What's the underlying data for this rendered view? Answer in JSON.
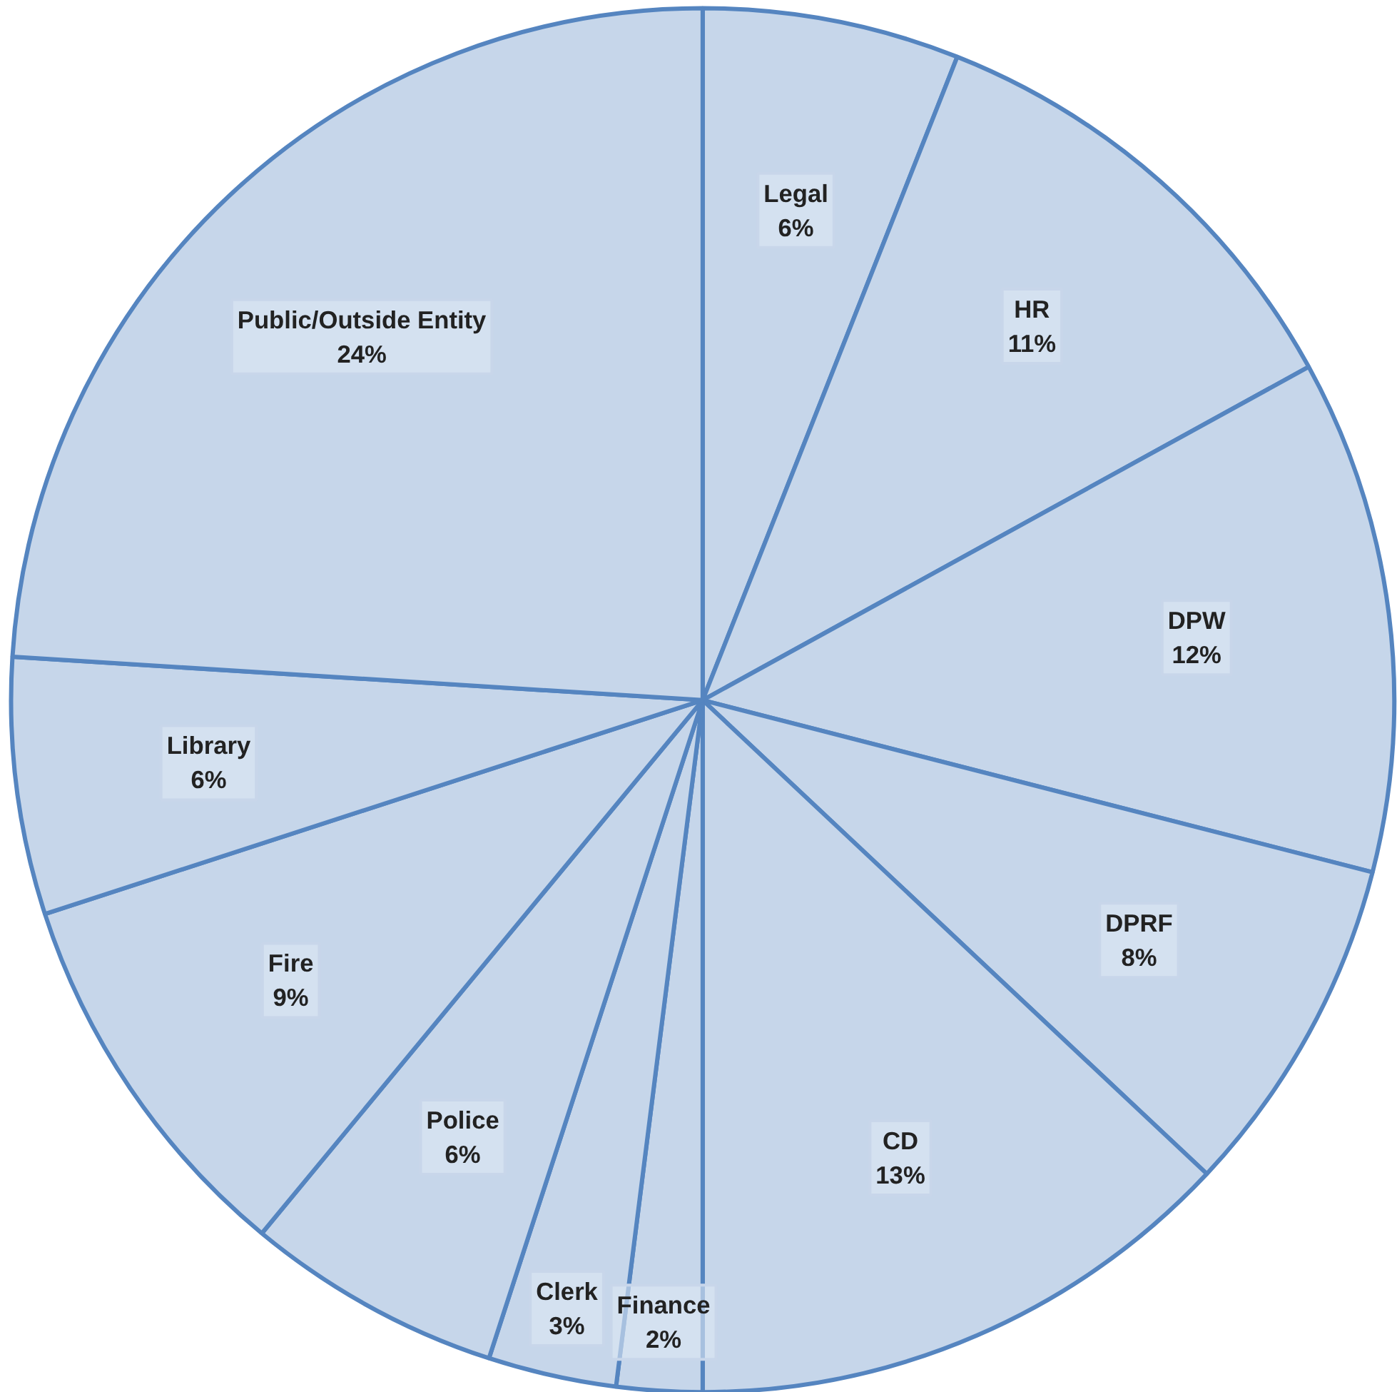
{
  "chart_data": {
    "type": "pie",
    "categories": [
      "Legal",
      "HR",
      "DPW",
      "DPRF",
      "CD",
      "Finance",
      "Clerk",
      "Police",
      "Fire",
      "Library",
      "Public/Outside Entity"
    ],
    "values": [
      6,
      11,
      12,
      8,
      13,
      2,
      3,
      6,
      9,
      6,
      24
    ],
    "value_labels": [
      "6%",
      "11%",
      "12%",
      "8%",
      "13%",
      "2%",
      "3%",
      "6%",
      "9%",
      "6%",
      "24%"
    ],
    "colors": [
      "#c6d6ea",
      "#c6d6ea",
      "#c6d6ea",
      "#c6d6ea",
      "#c6d6ea",
      "#c6d6ea",
      "#c6d6ea",
      "#c6d6ea",
      "#c6d6ea",
      "#c6d6ea",
      "#c6d6ea"
    ]
  }
}
